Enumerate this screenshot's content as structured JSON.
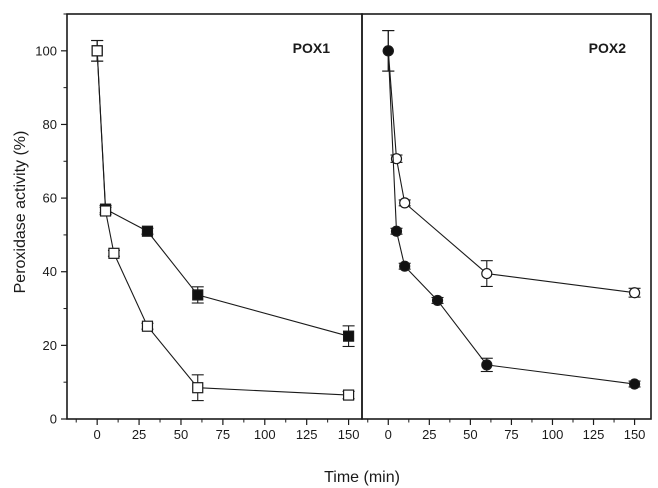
{
  "chart_data": {
    "type": "scatter",
    "xlabel": "Time (min)",
    "ylabel": "Peroxidase activity (%)",
    "ylim": [
      0,
      110
    ],
    "y_ticks": [
      0,
      20,
      40,
      60,
      80,
      100
    ],
    "x_ticks": [
      0,
      25,
      50,
      75,
      100,
      125,
      150
    ],
    "panels": [
      {
        "label": "POX1",
        "xlim": [
          -18,
          158
        ],
        "series": [
          {
            "marker": "square-filled",
            "points": [
              {
                "x": 0,
                "y": 100,
                "err": 2.8
              },
              {
                "x": 5,
                "y": 57,
                "err": 1
              },
              {
                "x": 30,
                "y": 51,
                "err": 0.8
              },
              {
                "x": 60,
                "y": 33.7,
                "err": 2.2
              },
              {
                "x": 150,
                "y": 22.5,
                "err": 2.8
              }
            ]
          },
          {
            "marker": "square-open",
            "points": [
              {
                "x": 0,
                "y": 100,
                "err": 2.8
              },
              {
                "x": 5,
                "y": 56.5,
                "err": 1
              },
              {
                "x": 10,
                "y": 45,
                "err": 0.8
              },
              {
                "x": 30,
                "y": 25.2,
                "err": 0.8
              },
              {
                "x": 60,
                "y": 8.5,
                "err": 3.5
              },
              {
                "x": 150,
                "y": 6.5,
                "err": 1
              }
            ]
          }
        ]
      },
      {
        "label": "POX2",
        "xlim": [
          -16,
          160
        ],
        "series": [
          {
            "marker": "circle-open",
            "points": [
              {
                "x": 0,
                "y": 100,
                "err": 5.5
              },
              {
                "x": 5,
                "y": 70.7,
                "err": 1
              },
              {
                "x": 10,
                "y": 58.7,
                "err": 0.8
              },
              {
                "x": 60,
                "y": 39.5,
                "err": 3.5
              },
              {
                "x": 150,
                "y": 34.3,
                "err": 1.2
              }
            ]
          },
          {
            "marker": "circle-filled",
            "points": [
              {
                "x": 0,
                "y": 100,
                "err": 5.5
              },
              {
                "x": 5,
                "y": 51,
                "err": 0.8
              },
              {
                "x": 10,
                "y": 41.5,
                "err": 0.8
              },
              {
                "x": 30,
                "y": 32.2,
                "err": 0.8
              },
              {
                "x": 60,
                "y": 14.7,
                "err": 1.8
              },
              {
                "x": 150,
                "y": 9.5,
                "err": 0.8
              }
            ]
          }
        ]
      }
    ]
  }
}
